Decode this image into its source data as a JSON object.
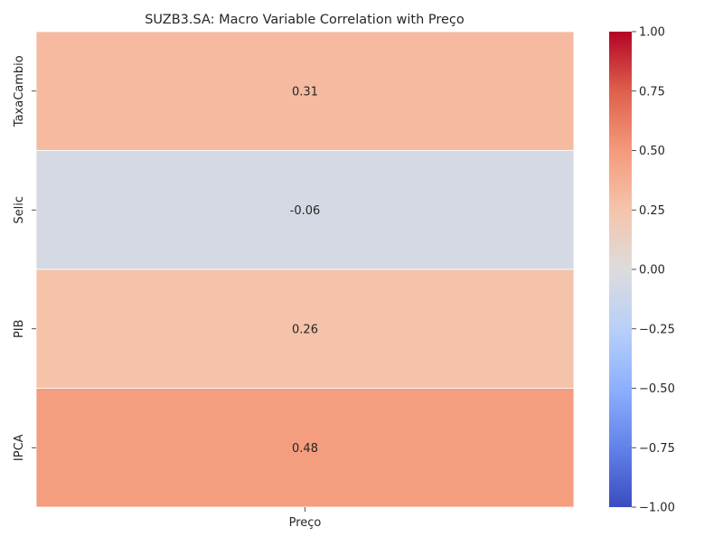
{
  "chart_data": {
    "type": "heatmap",
    "title": "SUZB3.SA: Macro Variable Correlation with Preço",
    "xlabel": "",
    "ylabel": "",
    "x_categories": [
      "Preço"
    ],
    "y_categories": [
      "TaxaCambio",
      "Selic",
      "PIB",
      "IPCA"
    ],
    "values": [
      [
        0.31
      ],
      [
        -0.06
      ],
      [
        0.26
      ],
      [
        0.48
      ]
    ],
    "value_labels": [
      "0.31",
      "-0.06",
      "0.26",
      "0.48"
    ],
    "colormap": "coolwarm",
    "vmin": -1.0,
    "vmax": 1.0,
    "colorbar_ticks": [
      {
        "value": 1.0,
        "label": "1.00"
      },
      {
        "value": 0.75,
        "label": "0.75"
      },
      {
        "value": 0.5,
        "label": "0.50"
      },
      {
        "value": 0.25,
        "label": "0.25"
      },
      {
        "value": 0.0,
        "label": "0.00"
      },
      {
        "value": -0.25,
        "label": "−0.25"
      },
      {
        "value": -0.5,
        "label": "−0.50"
      },
      {
        "value": -0.75,
        "label": "−0.75"
      },
      {
        "value": -1.0,
        "label": "−1.00"
      }
    ],
    "grid": false,
    "legend": "colorbar-right"
  }
}
